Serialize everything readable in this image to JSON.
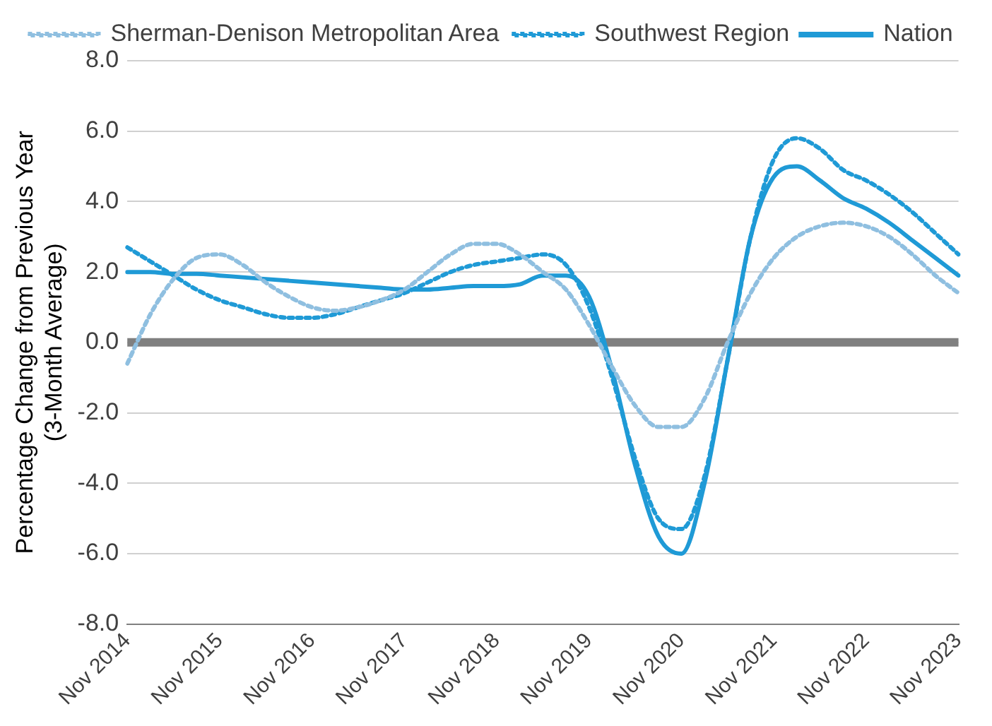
{
  "chart_data": {
    "type": "line",
    "ylabel": "Percentage Change from Previous Year (3-Month Average)",
    "categories": [
      "Nov 2014",
      null,
      null,
      null,
      "Nov 2015",
      null,
      null,
      null,
      "Nov 2016",
      null,
      null,
      null,
      "Nov 2017",
      null,
      null,
      null,
      "Nov 2018",
      null,
      null,
      null,
      "Nov 2019",
      null,
      null,
      null,
      "Nov 2020",
      null,
      null,
      null,
      "Nov 2021",
      null,
      null,
      null,
      "Nov 2022",
      null,
      null,
      null,
      "Nov 2023"
    ],
    "series": [
      {
        "name": "Sherman-Denison Metropolitan Area",
        "color": "#8fbfe0",
        "line_style": "dotted",
        "values": [
          -0.6,
          0.8,
          1.8,
          2.4,
          2.5,
          2.2,
          1.7,
          1.3,
          1.0,
          0.9,
          1.0,
          1.2,
          1.5,
          2.0,
          2.5,
          2.8,
          2.8,
          2.5,
          2.0,
          1.5,
          0.5,
          -0.7,
          -1.8,
          -2.4,
          -2.4,
          -1.6,
          0.0,
          1.4,
          2.4,
          3.0,
          3.3,
          3.4,
          3.3,
          3.0,
          2.5,
          1.9,
          1.4
        ]
      },
      {
        "name": "Southwest Region",
        "color": "#1f9ad6",
        "line_style": "dotted",
        "values": [
          2.7,
          2.3,
          1.9,
          1.5,
          1.2,
          1.0,
          0.8,
          0.7,
          0.7,
          0.8,
          1.0,
          1.2,
          1.4,
          1.7,
          2.0,
          2.2,
          2.3,
          2.4,
          2.5,
          2.2,
          1.0,
          -1.0,
          -3.3,
          -5.0,
          -5.3,
          -3.8,
          -0.5,
          3.0,
          5.2,
          5.8,
          5.5,
          4.9,
          4.6,
          4.2,
          3.7,
          3.1,
          2.5
        ]
      },
      {
        "name": "Nation",
        "color": "#1f9ad6",
        "line_style": "solid",
        "values": [
          2.0,
          2.0,
          1.95,
          1.95,
          1.9,
          1.85,
          1.8,
          1.75,
          1.7,
          1.65,
          1.6,
          1.55,
          1.5,
          1.5,
          1.55,
          1.6,
          1.6,
          1.65,
          1.9,
          1.9,
          1.3,
          -0.8,
          -3.5,
          -5.5,
          -6.0,
          -4.0,
          -0.5,
          3.0,
          4.7,
          5.0,
          4.6,
          4.1,
          3.8,
          3.4,
          2.9,
          2.4,
          1.9
        ]
      }
    ],
    "ylim": [
      -8,
      8
    ],
    "yticks": [
      {
        "value": -8,
        "label": "-8.0"
      },
      {
        "value": -6,
        "label": "-6.0"
      },
      {
        "value": -4,
        "label": "-4.0"
      },
      {
        "value": -2,
        "label": "-2.0"
      },
      {
        "value": 0,
        "label": "0.0"
      },
      {
        "value": 2,
        "label": "2.0"
      },
      {
        "value": 4,
        "label": "4.0"
      },
      {
        "value": 6,
        "label": "6.0"
      },
      {
        "value": 8,
        "label": "8.0"
      }
    ],
    "ref_lines": [
      {
        "axis": "y",
        "value": 0,
        "color": "#808080"
      }
    ],
    "grid": "y",
    "legend": "top",
    "marker": "none"
  }
}
